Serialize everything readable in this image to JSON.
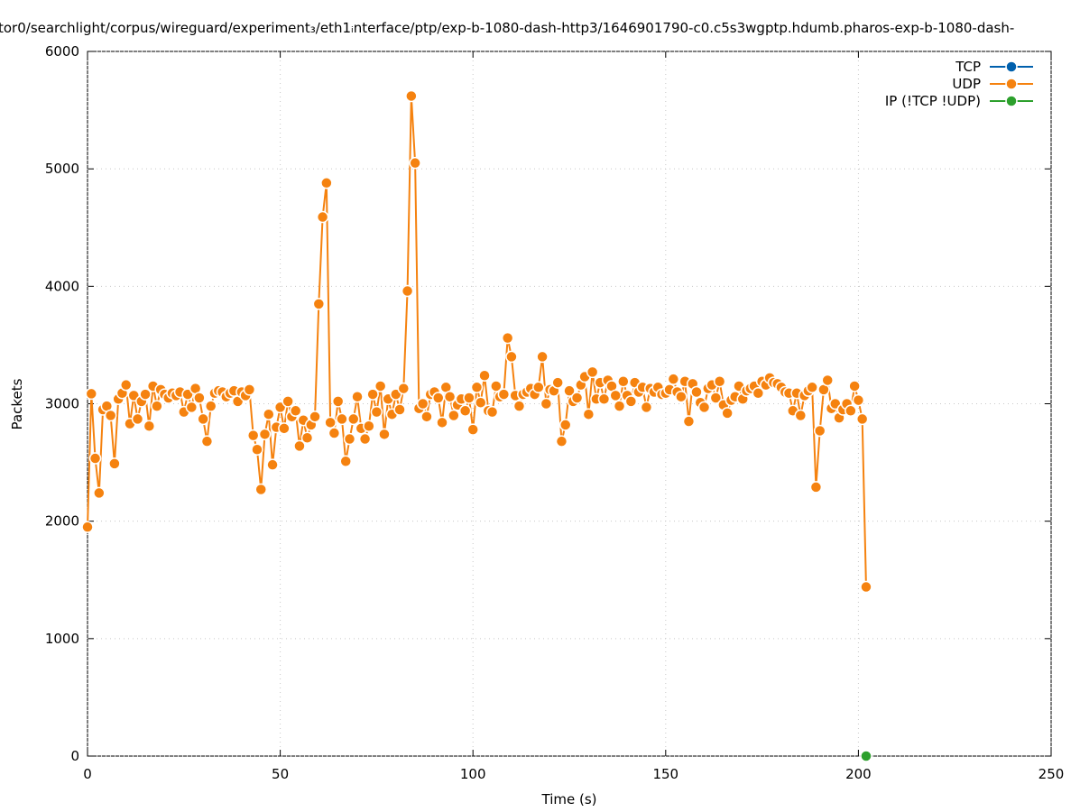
{
  "chart_data": {
    "type": "line",
    "title": "tor0/searchlight/corpus/wireguard/experiment₃/eth1ᵢnterface/ptp/exp-b-1080-dash-http3/1646901790-c0.c5s3wgptp.hdumb.pharos-exp-b-1080-dash-",
    "x_label": "Time (s)",
    "y_label": "Packets",
    "xlim": [
      0,
      250
    ],
    "xticks": [
      0,
      50,
      100,
      150,
      200,
      250
    ],
    "ylim": [
      0,
      6000
    ],
    "yticks": [
      0,
      1000,
      2000,
      3000,
      4000,
      5000,
      6000
    ],
    "grid": true,
    "legend": "top-right",
    "series": [
      {
        "name": "TCP",
        "color": "#0060ad",
        "x": [],
        "values": []
      },
      {
        "name": "UDP",
        "color": "#f5820f",
        "x": [
          0,
          1,
          2,
          3,
          4,
          5,
          6,
          7,
          8,
          9,
          10,
          11,
          12,
          13,
          14,
          15,
          16,
          17,
          18,
          19,
          20,
          21,
          22,
          23,
          24,
          25,
          26,
          27,
          28,
          29,
          30,
          31,
          32,
          33,
          34,
          35,
          36,
          37,
          38,
          39,
          40,
          41,
          42,
          43,
          44,
          45,
          46,
          47,
          48,
          49,
          50,
          51,
          52,
          53,
          54,
          55,
          56,
          57,
          58,
          59,
          60,
          61,
          62,
          63,
          64,
          65,
          66,
          67,
          68,
          69,
          70,
          71,
          72,
          73,
          74,
          75,
          76,
          77,
          78,
          79,
          80,
          81,
          82,
          83,
          84,
          85,
          86,
          87,
          88,
          89,
          90,
          91,
          92,
          93,
          94,
          95,
          96,
          97,
          98,
          99,
          100,
          101,
          102,
          103,
          104,
          105,
          106,
          107,
          108,
          109,
          110,
          111,
          112,
          113,
          114,
          115,
          116,
          117,
          118,
          119,
          120,
          121,
          122,
          123,
          124,
          125,
          126,
          127,
          128,
          129,
          130,
          131,
          132,
          133,
          134,
          135,
          136,
          137,
          138,
          139,
          140,
          141,
          142,
          143,
          144,
          145,
          146,
          147,
          148,
          149,
          150,
          151,
          152,
          153,
          154,
          155,
          156,
          157,
          158,
          159,
          160,
          161,
          162,
          163,
          164,
          165,
          166,
          167,
          168,
          169,
          170,
          171,
          172,
          173,
          174,
          175,
          176,
          177,
          178,
          179,
          180,
          181,
          182,
          183,
          184,
          185,
          186,
          187,
          188,
          189,
          190,
          191,
          192,
          193,
          194,
          195,
          196,
          197,
          198,
          199,
          200,
          201,
          202
        ],
        "values": [
          1950,
          3085,
          2535,
          2240,
          2950,
          2980,
          2900,
          2490,
          3040,
          3090,
          3160,
          2830,
          3070,
          2870,
          3020,
          3080,
          2810,
          3150,
          2980,
          3120,
          3080,
          3050,
          3090,
          3070,
          3100,
          2930,
          3080,
          2970,
          3130,
          3050,
          2870,
          2680,
          2980,
          3090,
          3110,
          3100,
          3060,
          3090,
          3110,
          3020,
          3100,
          3070,
          3120,
          2730,
          2610,
          2270,
          2740,
          2910,
          2480,
          2800,
          2970,
          2790,
          3020,
          2890,
          2940,
          2640,
          2860,
          2710,
          2820,
          2890,
          3850,
          4590,
          4880,
          2840,
          2750,
          3020,
          2870,
          2510,
          2700,
          2870,
          3060,
          2790,
          2700,
          2810,
          3080,
          2930,
          3150,
          2740,
          3040,
          2910,
          3080,
          2950,
          3130,
          3960,
          5620,
          5050,
          2960,
          3000,
          2890,
          3080,
          3100,
          3050,
          2840,
          3140,
          3060,
          2900,
          2990,
          3040,
          2940,
          3050,
          2780,
          3140,
          3010,
          3240,
          2940,
          2930,
          3150,
          3060,
          3080,
          3560,
          3400,
          3070,
          2980,
          3080,
          3100,
          3130,
          3080,
          3140,
          3400,
          3000,
          3120,
          3110,
          3180,
          2680,
          2820,
          3110,
          3020,
          3050,
          3160,
          3230,
          2910,
          3270,
          3040,
          3180,
          3040,
          3200,
          3150,
          3070,
          2980,
          3190,
          3070,
          3020,
          3180,
          3100,
          3140,
          2970,
          3130,
          3100,
          3140,
          3080,
          3090,
          3120,
          3210,
          3100,
          3060,
          3190,
          2850,
          3170,
          3100,
          3010,
          2970,
          3130,
          3160,
          3050,
          3190,
          2990,
          2920,
          3030,
          3060,
          3150,
          3040,
          3110,
          3130,
          3150,
          3090,
          3190,
          3160,
          3220,
          3180,
          3170,
          3140,
          3100,
          3090,
          2940,
          3090,
          2900,
          3070,
          3110,
          3140,
          2290,
          2770,
          3120,
          3200,
          2960,
          3000,
          2880,
          2950,
          3000,
          2940,
          3150,
          3030,
          2870,
          1440
        ]
      },
      {
        "name": "IP (!TCP  !UDP)",
        "color": "#2ca02c",
        "x": [
          202
        ],
        "values": [
          0
        ]
      }
    ]
  }
}
